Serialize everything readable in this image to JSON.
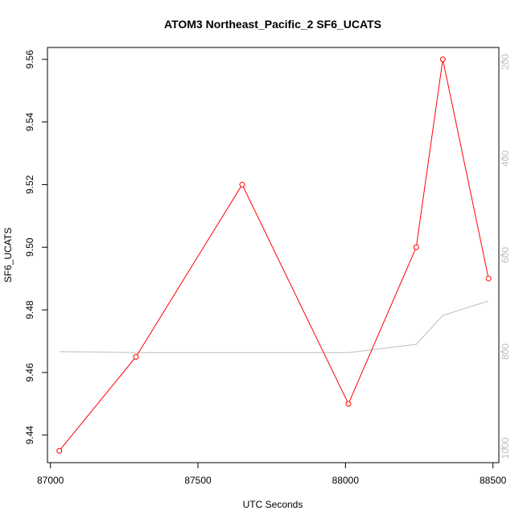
{
  "chart_data": {
    "type": "line",
    "title": "ATOM3 Northeast_Pacific_2 SF6_UCATS",
    "xlabel": "UTC Seconds",
    "ylabel": "SF6_UCATS",
    "xlim": [
      86990,
      88520
    ],
    "ylim": [
      9.4312,
      9.5638
    ],
    "x_ticks": [
      87000,
      87500,
      88000,
      88500
    ],
    "y_ticks": [
      9.44,
      9.46,
      9.48,
      9.5,
      9.52,
      9.54,
      9.56
    ],
    "y_tick_labels": [
      "9.44",
      "9.46",
      "9.48",
      "9.50",
      "9.52",
      "9.54",
      "9.56"
    ],
    "y2_lim": [
      1030,
      170
    ],
    "y2_ticks": [
      200,
      400,
      600,
      800,
      1000
    ],
    "grid": false,
    "series": [
      {
        "color": "#ff0000",
        "marker": "open-circle",
        "x": [
          87030,
          87290,
          87650,
          88010,
          88240,
          88330,
          88485
        ],
        "y": [
          9.435,
          9.465,
          9.52,
          9.45,
          9.5,
          9.56,
          9.49
        ]
      },
      {
        "color": "#bebebe",
        "axis": "right",
        "x": [
          87030,
          87290,
          87650,
          88010,
          88240,
          88330,
          88485
        ],
        "y": [
          800,
          802,
          802,
          802,
          785,
          725,
          695
        ]
      }
    ]
  }
}
